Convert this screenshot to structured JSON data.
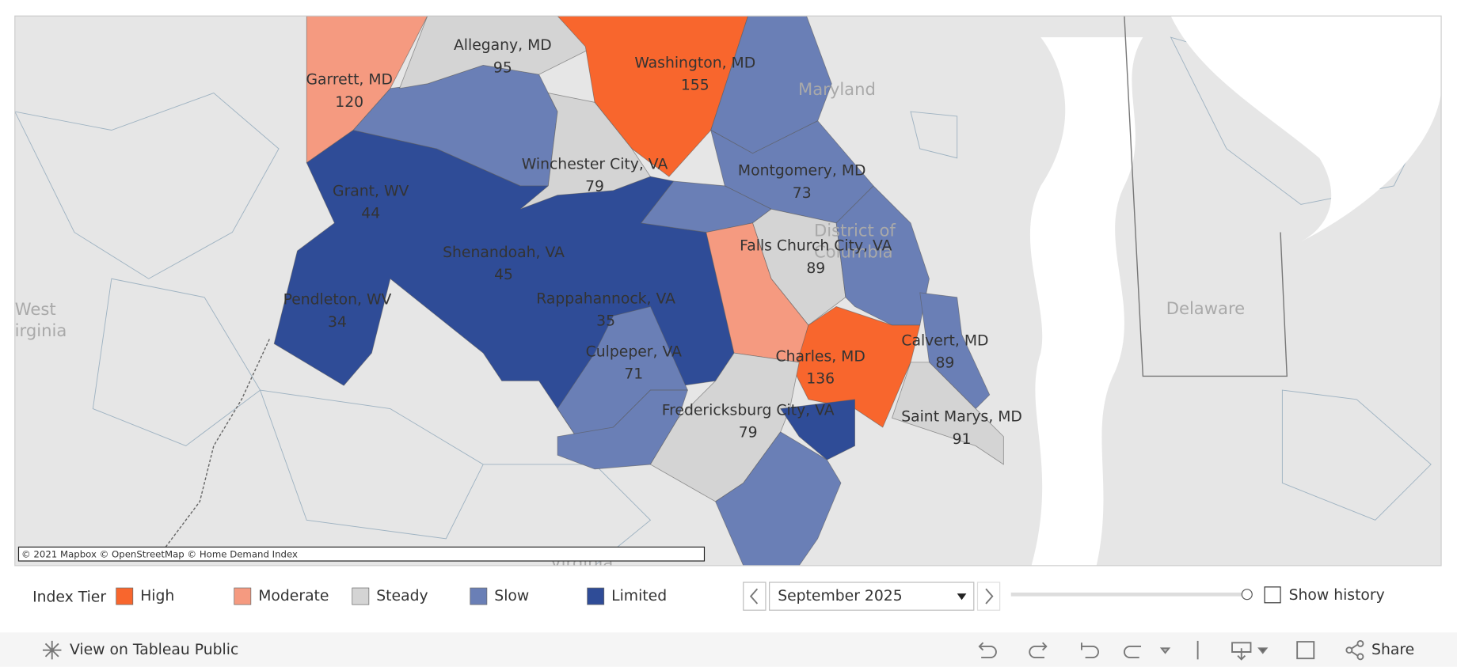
{
  "map": {
    "regions": [
      {
        "name": "Garrett, MD",
        "value": 120,
        "tier": "Moderate"
      },
      {
        "name": "Allegany, MD",
        "value": 95,
        "tier": "Steady"
      },
      {
        "name": "Washington, MD",
        "value": 155,
        "tier": "High"
      },
      {
        "name": "Winchester City, VA",
        "value": 79,
        "tier": "Steady"
      },
      {
        "name": "Grant, WV",
        "value": 44,
        "tier": "Limited"
      },
      {
        "name": "Montgomery, MD",
        "value": 73,
        "tier": "Slow"
      },
      {
        "name": "Falls Church City, VA",
        "value": 89,
        "tier": "Steady"
      },
      {
        "name": "Shenandoah, VA",
        "value": 45,
        "tier": "Limited"
      },
      {
        "name": "Pendleton, WV",
        "value": 34,
        "tier": "Limited"
      },
      {
        "name": "Rappahannock, VA",
        "value": 35,
        "tier": "Limited"
      },
      {
        "name": "Culpeper, VA",
        "value": 71,
        "tier": "Slow"
      },
      {
        "name": "Charles, MD",
        "value": 136,
        "tier": "High"
      },
      {
        "name": "Calvert, MD",
        "value": 89,
        "tier": "Slow"
      },
      {
        "name": "Fredericksburg City, VA",
        "value": 79,
        "tier": "Steady"
      },
      {
        "name": "Saint Marys, MD",
        "value": 91,
        "tier": "Steady"
      }
    ],
    "place_labels": [
      "Maryland",
      "District of",
      "Columbia",
      "West",
      "Virginia",
      "Delaware",
      "Virginia"
    ],
    "attribution": "© 2021 Mapbox © OpenStreetMap  © Home Demand Index"
  },
  "legend": {
    "title": "Index Tier",
    "tiers": [
      {
        "name": "High",
        "color": "#f8662d"
      },
      {
        "name": "Moderate",
        "color": "#f59a80"
      },
      {
        "name": "Steady",
        "color": "#d4d4d4"
      },
      {
        "name": "Slow",
        "color": "#6a7fb6"
      },
      {
        "name": "Limited",
        "color": "#2f4c97"
      }
    ]
  },
  "controls": {
    "date": "September 2025",
    "show_history": "Show history"
  },
  "toolbar": {
    "view": "View on Tableau Public",
    "share": "Share"
  }
}
